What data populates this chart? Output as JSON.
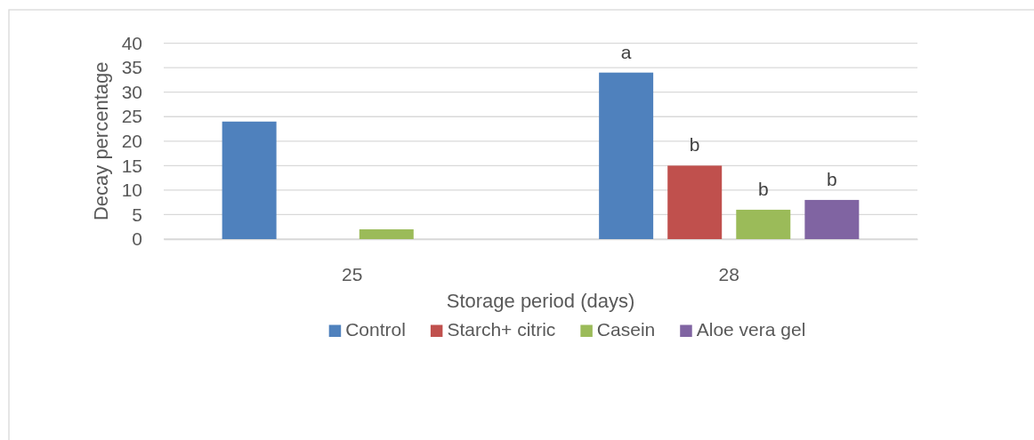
{
  "chart_data": {
    "type": "bar",
    "categories": [
      "25",
      "28"
    ],
    "series": [
      {
        "name": "Control",
        "color": "#4f81bd",
        "values": [
          24,
          34
        ],
        "value_labels": [
          null,
          "a"
        ]
      },
      {
        "name": "Starch+ citric",
        "color": "#c0504d",
        "values": [
          null,
          15
        ],
        "value_labels": [
          null,
          "b"
        ]
      },
      {
        "name": "Casein",
        "color": "#9bbb59",
        "values": [
          2,
          6
        ],
        "value_labels": [
          null,
          "b"
        ]
      },
      {
        "name": "Aloe vera gel",
        "color": "#8064a2",
        "values": [
          null,
          8
        ],
        "value_labels": [
          null,
          "b"
        ]
      }
    ],
    "xlabel": "Storage period (days)",
    "ylabel": "Decay percentage",
    "ylim": [
      0,
      40
    ],
    "yticks": [
      0,
      5,
      10,
      15,
      20,
      25,
      30,
      35,
      40
    ],
    "grid": "y",
    "legend": "bottom"
  }
}
